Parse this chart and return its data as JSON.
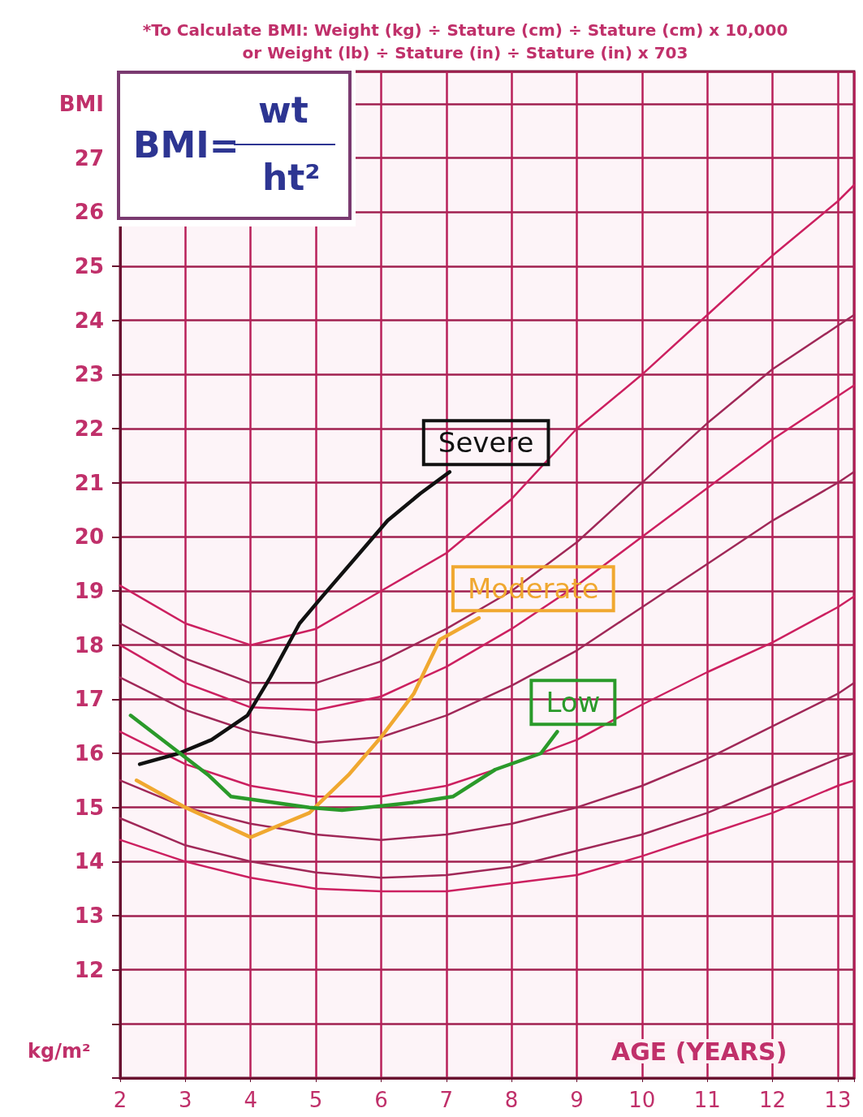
{
  "chart_data": {
    "type": "line",
    "title": "*To Calculate BMI: Weight (kg) ÷ Stature (cm) ÷ Stature (cm) x 10,000",
    "subtitle": "or Weight (lb) ÷ Stature (in) ÷ Stature (in) x 703",
    "xlabel": "AGE (YEARS)",
    "ylabel": "kg/m²",
    "annotations": [
      "BMI=",
      "wt",
      "ht²"
    ],
    "x": [
      2,
      3,
      4,
      5,
      6,
      7,
      8,
      9,
      10,
      11,
      12,
      13,
      13.25
    ],
    "xlim": [
      2,
      13.25
    ],
    "xticks": [
      2,
      3,
      4,
      5,
      6,
      7,
      8,
      9,
      10,
      11,
      12,
      13
    ],
    "ylim": [
      10,
      28.6
    ],
    "yticks": [
      12,
      13,
      14,
      15,
      16,
      17,
      18,
      19,
      20,
      21,
      22,
      23,
      24,
      25,
      26,
      27,
      {
        "value": 28,
        "label": "BMI"
      }
    ],
    "grid": true,
    "marker": "none",
    "line_style": "solid",
    "series": [
      {
        "color": "#cc2060",
        "values": [
          19.1,
          18.4,
          18.0,
          18.3,
          19.0,
          19.7,
          20.7,
          22.0,
          23.0,
          24.1,
          25.2,
          26.2,
          26.5
        ]
      },
      {
        "color": "#a02858",
        "values": [
          18.4,
          17.75,
          17.3,
          17.3,
          17.7,
          18.3,
          19.0,
          19.9,
          21.0,
          22.1,
          23.1,
          23.9,
          24.1
        ]
      },
      {
        "color": "#cc2060",
        "values": [
          18.0,
          17.3,
          16.85,
          16.8,
          17.05,
          17.6,
          18.3,
          19.1,
          20.0,
          20.9,
          21.8,
          22.6,
          22.8
        ]
      },
      {
        "color": "#a02858",
        "values": [
          17.4,
          16.8,
          16.4,
          16.2,
          16.3,
          16.7,
          17.25,
          17.9,
          18.7,
          19.5,
          20.3,
          21.0,
          21.2
        ]
      },
      {
        "color": "#cc2060",
        "values": [
          16.4,
          15.8,
          15.4,
          15.2,
          15.2,
          15.4,
          15.8,
          16.25,
          16.9,
          17.5,
          18.05,
          18.7,
          18.9
        ]
      },
      {
        "color": "#a02858",
        "values": [
          15.5,
          15.0,
          14.7,
          14.5,
          14.4,
          14.5,
          14.7,
          15.0,
          15.4,
          15.9,
          16.5,
          17.1,
          17.3
        ]
      },
      {
        "color": "#a02858",
        "values": [
          14.8,
          14.3,
          14.0,
          13.8,
          13.7,
          13.75,
          13.9,
          14.2,
          14.5,
          14.9,
          15.4,
          15.9,
          16.0
        ]
      },
      {
        "color": "#cc2060",
        "values": [
          14.4,
          14.0,
          13.7,
          13.5,
          13.45,
          13.45,
          13.6,
          13.75,
          14.1,
          14.5,
          14.9,
          15.4,
          15.5
        ]
      },
      {
        "name": "Severe",
        "color": "#111111",
        "x": [
          2.3,
          2.9,
          3.4,
          3.95,
          4.3,
          4.75,
          5.1,
          5.6,
          6.1,
          6.6,
          7.05
        ],
        "values": [
          15.8,
          16.0,
          16.25,
          16.7,
          17.4,
          18.4,
          18.9,
          19.6,
          20.3,
          20.8,
          21.2
        ]
      },
      {
        "name": "Moderate",
        "color": "#f0a830",
        "x": [
          2.25,
          3,
          4,
          4.9,
          5.5,
          6,
          6.5,
          6.9,
          7.5
        ],
        "values": [
          15.5,
          15.0,
          14.45,
          14.9,
          15.6,
          16.3,
          17.1,
          18.1,
          18.5
        ]
      },
      {
        "name": "Low",
        "color": "#2a9a2a",
        "x": [
          2.16,
          2.97,
          3.35,
          3.7,
          4.9,
          5.4,
          6.55,
          7.1,
          7.75,
          8.45,
          8.7
        ],
        "values": [
          16.7,
          15.95,
          15.6,
          15.2,
          15.0,
          14.95,
          15.1,
          15.2,
          15.7,
          16.0,
          16.4
        ]
      }
    ]
  }
}
